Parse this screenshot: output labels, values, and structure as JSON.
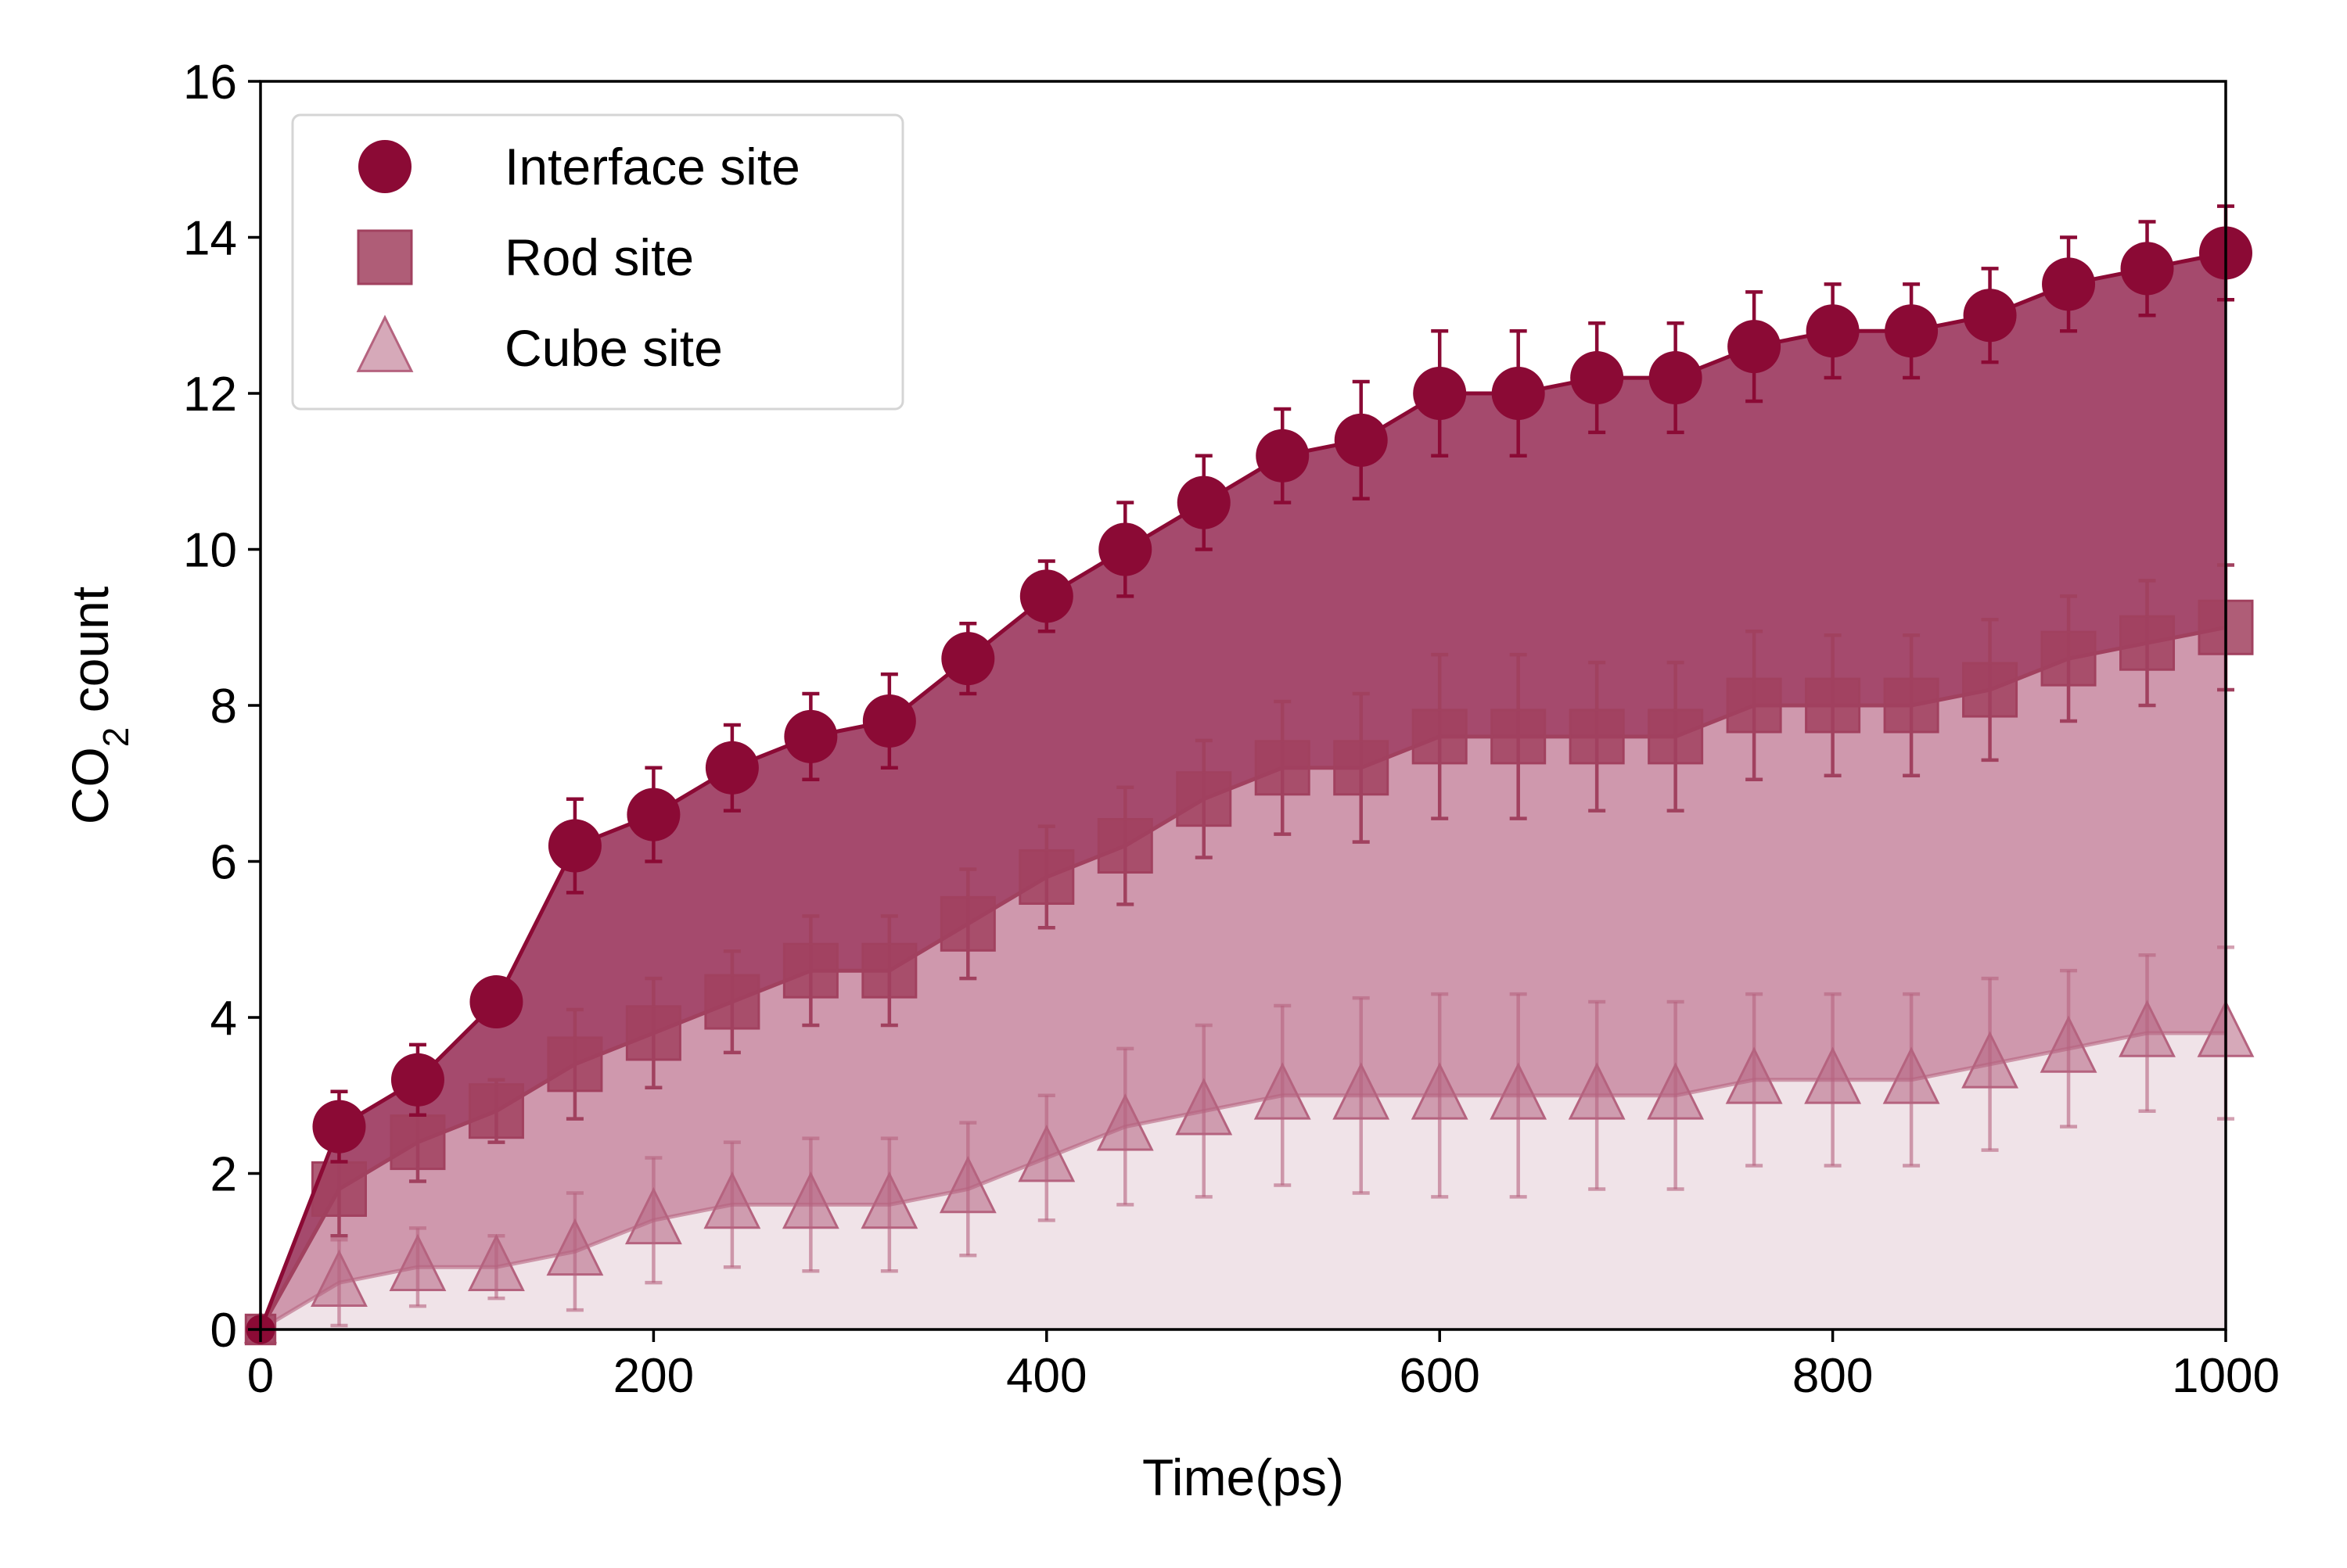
{
  "chart_data": {
    "type": "line",
    "title": "",
    "xlabel": "Time(ps)",
    "ylabel": {
      "prefix": "CO",
      "subscript": "2",
      "suffix": " count"
    },
    "xlim": [
      0,
      1000
    ],
    "ylim": [
      0,
      16
    ],
    "xticks": [
      "0",
      "200",
      "400",
      "600",
      "800",
      "1000"
    ],
    "yticks": [
      "0",
      "2",
      "4",
      "6",
      "8",
      "10",
      "12",
      "14",
      "16"
    ],
    "grid": false,
    "legend_position": "top-left",
    "x": [
      0,
      40,
      80,
      120,
      160,
      200,
      240,
      280,
      320,
      360,
      400,
      440,
      480,
      520,
      560,
      600,
      640,
      680,
      720,
      760,
      800,
      840,
      880,
      920,
      960,
      1000
    ],
    "series": [
      {
        "name": "Interface site",
        "marker": "circle",
        "color": "#8b0a35",
        "fill": "#a54a6d",
        "values": [
          0,
          2.6,
          3.2,
          4.2,
          6.2,
          6.6,
          7.2,
          7.6,
          7.8,
          8.6,
          9.4,
          10.0,
          10.6,
          11.2,
          11.4,
          12.0,
          12.0,
          12.2,
          12.2,
          12.6,
          12.8,
          12.8,
          13.0,
          13.4,
          13.6,
          13.8
        ],
        "errors": [
          0,
          0.45,
          0.45,
          0,
          0.6,
          0.6,
          0.55,
          0.55,
          0.6,
          0.45,
          0.45,
          0.6,
          0.6,
          0.6,
          0.75,
          0.8,
          0.8,
          0.7,
          0.7,
          0.7,
          0.6,
          0.6,
          0.6,
          0.6,
          0.6,
          0.6
        ]
      },
      {
        "name": "Rod site",
        "marker": "square",
        "color": "#a1415f",
        "fill": "#cf98ad",
        "values": [
          0,
          1.8,
          2.4,
          2.8,
          3.4,
          3.8,
          4.2,
          4.6,
          4.6,
          5.2,
          5.8,
          6.2,
          6.8,
          7.2,
          7.2,
          7.6,
          7.6,
          7.6,
          7.6,
          8.0,
          8.0,
          8.0,
          8.2,
          8.6,
          8.8,
          9.0
        ],
        "errors": [
          0,
          0.6,
          0.5,
          0.4,
          0.7,
          0.7,
          0.65,
          0.7,
          0.7,
          0.7,
          0.65,
          0.75,
          0.75,
          0.85,
          0.95,
          1.05,
          1.05,
          0.95,
          0.95,
          0.95,
          0.9,
          0.9,
          0.9,
          0.8,
          0.8,
          0.8
        ]
      },
      {
        "name": "Cube site",
        "marker": "triangle",
        "color": "#b5637f",
        "fill": "#f0e3e8",
        "values": [
          0,
          0.6,
          0.8,
          0.8,
          1.0,
          1.4,
          1.6,
          1.6,
          1.6,
          1.8,
          2.2,
          2.6,
          2.8,
          3.0,
          3.0,
          3.0,
          3.0,
          3.0,
          3.0,
          3.2,
          3.2,
          3.2,
          3.4,
          3.6,
          3.8,
          3.8
        ],
        "errors": [
          0,
          0.55,
          0.5,
          0.4,
          0.75,
          0.8,
          0.8,
          0.85,
          0.85,
          0.85,
          0.8,
          1.0,
          1.1,
          1.15,
          1.25,
          1.3,
          1.3,
          1.2,
          1.2,
          1.1,
          1.1,
          1.1,
          1.1,
          1.0,
          1.0,
          1.1
        ]
      }
    ]
  }
}
